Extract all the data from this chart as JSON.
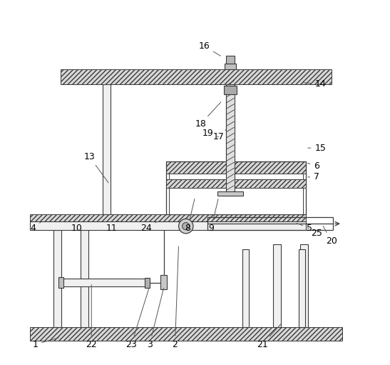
{
  "bg_color": "#ffffff",
  "lc": "#3a3a3a",
  "lw": 1.0,
  "fig_w": 5.47,
  "fig_h": 5.11,
  "dpi": 100,
  "hatch_fc": "#d8d8d8",
  "plain_fc": "#f0f0f0",
  "white_fc": "#ffffff",
  "label_fs": 9,
  "label_color": "#000000",
  "leader_color": "#555555",
  "labels_coords": {
    "1": [
      0.06,
      0.055,
      0.13,
      0.075
    ],
    "2": [
      0.445,
      0.055,
      0.455,
      0.33
    ],
    "3": [
      0.375,
      0.055,
      0.415,
      0.215
    ],
    "4": [
      0.055,
      0.375,
      0.08,
      0.395
    ],
    "5": [
      0.815,
      0.375,
      0.775,
      0.39
    ],
    "6": [
      0.835,
      0.545,
      0.805,
      0.555
    ],
    "7": [
      0.835,
      0.515,
      0.805,
      0.515
    ],
    "8": [
      0.48,
      0.375,
      0.5,
      0.46
    ],
    "9": [
      0.545,
      0.375,
      0.565,
      0.46
    ],
    "10": [
      0.175,
      0.375,
      0.195,
      0.395
    ],
    "11": [
      0.27,
      0.375,
      0.29,
      0.395
    ],
    "13": [
      0.21,
      0.57,
      0.265,
      0.495
    ],
    "14": [
      0.845,
      0.77,
      0.79,
      0.775
    ],
    "15": [
      0.845,
      0.595,
      0.805,
      0.595
    ],
    "16": [
      0.525,
      0.875,
      0.575,
      0.845
    ],
    "17": [
      0.565,
      0.625,
      0.585,
      0.645
    ],
    "18": [
      0.515,
      0.66,
      0.575,
      0.725
    ],
    "19": [
      0.535,
      0.635,
      0.565,
      0.625
    ],
    "20": [
      0.875,
      0.34,
      0.85,
      0.385
    ],
    "21": [
      0.685,
      0.055,
      0.74,
      0.115
    ],
    "22": [
      0.215,
      0.055,
      0.215,
      0.225
    ],
    "23": [
      0.325,
      0.055,
      0.375,
      0.215
    ],
    "24": [
      0.365,
      0.375,
      0.4,
      0.395
    ],
    "25": [
      0.835,
      0.36,
      0.81,
      0.375
    ]
  }
}
